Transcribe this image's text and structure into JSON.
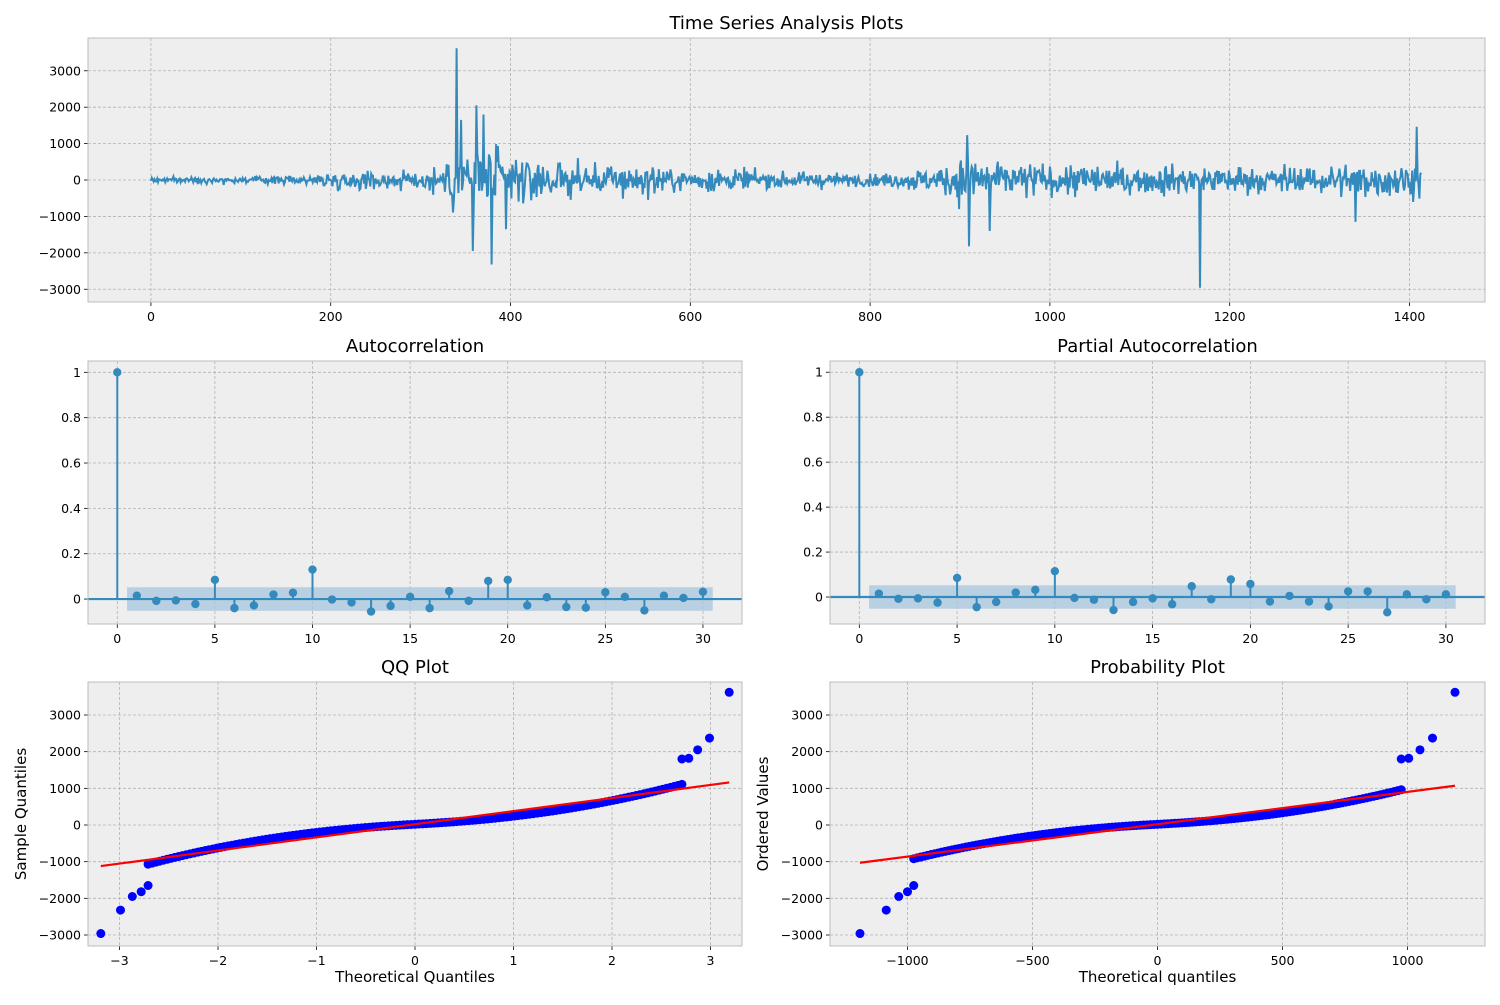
{
  "colors": {
    "panel_bg": "#eeeeee",
    "grid": "#b2b2b2",
    "frame": "#bcbcbc",
    "series": "#348abd",
    "confidence_band": "#a6c6dc",
    "qq_points": "#0000ff",
    "fit_line": "#ff0000"
  },
  "chart_data": [
    {
      "id": "ts",
      "type": "line",
      "title": "Time Series Analysis Plots",
      "xlabel": "",
      "ylabel": "",
      "xlim": [
        -70,
        1484
      ],
      "ylim": [
        -3350,
        3900
      ],
      "x_ticks": [
        0,
        200,
        400,
        600,
        800,
        1000,
        1200,
        1400
      ],
      "y_ticks": [
        -3000,
        -2000,
        -1000,
        0,
        1000,
        2000,
        3000
      ],
      "grid": true,
      "n_points": 1414,
      "notable_points": [
        {
          "x": 340,
          "y": 3620
        },
        {
          "x": 345,
          "y": 1650
        },
        {
          "x": 358,
          "y": -1950
        },
        {
          "x": 362,
          "y": 2050
        },
        {
          "x": 370,
          "y": 1800
        },
        {
          "x": 379,
          "y": -2320
        },
        {
          "x": 395,
          "y": -1350
        },
        {
          "x": 908,
          "y": 1230
        },
        {
          "x": 910,
          "y": -1820
        },
        {
          "x": 933,
          "y": -1400
        },
        {
          "x": 1167,
          "y": -2960
        },
        {
          "x": 1340,
          "y": -1150
        },
        {
          "x": 1408,
          "y": 1460
        }
      ]
    },
    {
      "id": "acf",
      "type": "stem",
      "title": "Autocorrelation",
      "xlabel": "",
      "ylabel": "",
      "xlim": [
        -1.5,
        32
      ],
      "ylim": [
        -0.11,
        1.05
      ],
      "x_ticks": [
        0,
        5,
        10,
        15,
        20,
        25,
        30
      ],
      "y_ticks": [
        0.0,
        0.2,
        0.4,
        0.6,
        0.8,
        1.0
      ],
      "grid": true,
      "confidence_band": [
        -0.052,
        0.052
      ],
      "x": [
        0,
        1,
        2,
        3,
        4,
        5,
        6,
        7,
        8,
        9,
        10,
        11,
        12,
        13,
        14,
        15,
        16,
        17,
        18,
        19,
        20,
        21,
        22,
        23,
        24,
        25,
        26,
        27,
        28,
        29,
        30
      ],
      "values": [
        1.0,
        0.015,
        -0.008,
        -0.006,
        -0.022,
        0.085,
        -0.04,
        -0.028,
        0.02,
        0.028,
        0.13,
        -0.002,
        -0.015,
        -0.055,
        -0.03,
        0.01,
        -0.04,
        0.035,
        -0.008,
        0.08,
        0.085,
        -0.028,
        0.008,
        -0.035,
        -0.038,
        0.03,
        0.01,
        -0.05,
        0.015,
        0.005,
        0.032
      ]
    },
    {
      "id": "pacf",
      "type": "stem",
      "title": "Partial Autocorrelation",
      "xlabel": "",
      "ylabel": "",
      "xlim": [
        -1.5,
        32
      ],
      "ylim": [
        -0.12,
        1.05
      ],
      "x_ticks": [
        0,
        5,
        10,
        15,
        20,
        25,
        30
      ],
      "y_ticks": [
        0.0,
        0.2,
        0.4,
        0.6,
        0.8,
        1.0
      ],
      "grid": true,
      "confidence_band": [
        -0.052,
        0.052
      ],
      "x": [
        0,
        1,
        2,
        3,
        4,
        5,
        6,
        7,
        8,
        9,
        10,
        11,
        12,
        13,
        14,
        15,
        16,
        17,
        18,
        19,
        20,
        21,
        22,
        23,
        24,
        25,
        26,
        27,
        28,
        29,
        30
      ],
      "values": [
        1.0,
        0.015,
        -0.008,
        -0.006,
        -0.025,
        0.085,
        -0.045,
        -0.022,
        0.02,
        0.032,
        0.115,
        -0.004,
        -0.012,
        -0.058,
        -0.022,
        -0.006,
        -0.032,
        0.048,
        -0.01,
        0.078,
        0.058,
        -0.02,
        0.005,
        -0.02,
        -0.042,
        0.025,
        0.025,
        -0.068,
        0.012,
        -0.01,
        0.012
      ]
    },
    {
      "id": "qq",
      "type": "scatter",
      "title": "QQ Plot",
      "xlabel": "Theoretical Quantiles",
      "ylabel": "Sample Quantiles",
      "xlim": [
        -3.32,
        3.32
      ],
      "ylim": [
        -3300,
        3900
      ],
      "x_ticks": [
        -3,
        -2,
        -1,
        0,
        1,
        2,
        3
      ],
      "y_ticks": [
        -3000,
        -2000,
        -1000,
        0,
        1000,
        2000,
        3000
      ],
      "grid": true,
      "x_range": [
        -3.19,
        3.19
      ],
      "fit_line": {
        "x": [
          -3.19,
          3.19
        ],
        "y": [
          -1120,
          1160
        ]
      },
      "tail_points": [
        {
          "x": -3.19,
          "y": -2960
        },
        {
          "x": -2.99,
          "y": -2320
        },
        {
          "x": -2.87,
          "y": -1950
        },
        {
          "x": -2.78,
          "y": -1820
        },
        {
          "x": -2.71,
          "y": -1650
        },
        {
          "x": 2.71,
          "y": 1800
        },
        {
          "x": 2.78,
          "y": 1820
        },
        {
          "x": 2.87,
          "y": 2050
        },
        {
          "x": 2.99,
          "y": 2370
        },
        {
          "x": 3.19,
          "y": 3620
        }
      ]
    },
    {
      "id": "prob",
      "type": "scatter",
      "title": "Probability Plot",
      "xlabel": "Theoretical quantiles",
      "ylabel": "Ordered Values",
      "xlim": [
        -1310,
        1310
      ],
      "ylim": [
        -3300,
        3900
      ],
      "x_ticks": [
        -1000,
        -500,
        0,
        500,
        1000
      ],
      "y_ticks": [
        -3000,
        -2000,
        -1000,
        0,
        1000,
        2000,
        3000
      ],
      "grid": true,
      "x_range": [
        -1190,
        1190
      ],
      "fit_line": {
        "x": [
          -1190,
          1190
        ],
        "y": [
          -1030,
          1070
        ]
      },
      "tail_points": [
        {
          "x": -1190,
          "y": -2960
        },
        {
          "x": -1085,
          "y": -2320
        },
        {
          "x": -1035,
          "y": -1950
        },
        {
          "x": -1000,
          "y": -1820
        },
        {
          "x": -975,
          "y": -1650
        },
        {
          "x": 975,
          "y": 1800
        },
        {
          "x": 1005,
          "y": 1820
        },
        {
          "x": 1050,
          "y": 2050
        },
        {
          "x": 1100,
          "y": 2370
        },
        {
          "x": 1190,
          "y": 3620
        }
      ]
    }
  ]
}
